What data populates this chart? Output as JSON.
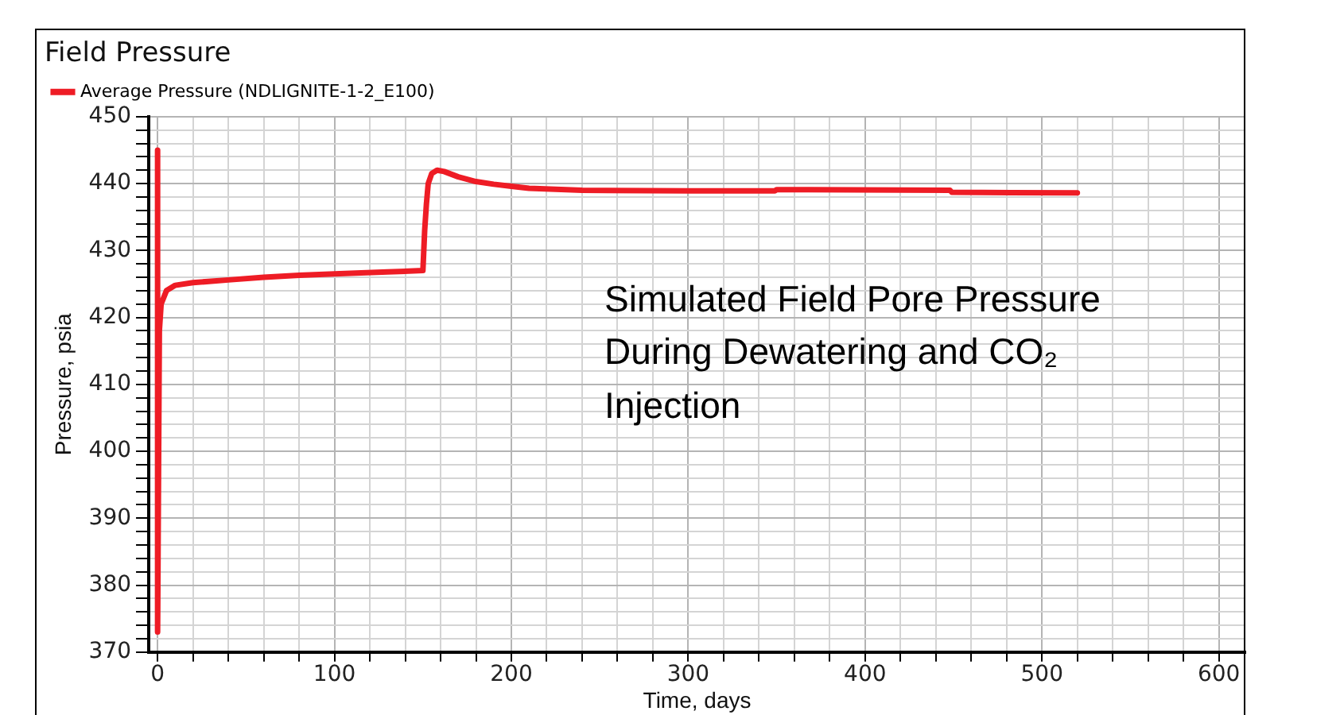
{
  "chart_data": {
    "type": "line",
    "title": "Field Pressure",
    "xlabel": "Time, days",
    "ylabel": "Pressure, psia",
    "x": [
      0,
      0,
      1,
      2,
      5,
      10,
      20,
      40,
      60,
      80,
      100,
      130,
      150,
      151,
      152,
      153,
      155,
      158,
      162,
      170,
      180,
      190,
      200,
      210,
      240,
      300,
      349,
      350,
      448,
      449,
      520
    ],
    "series": [
      {
        "name": "Average Pressure (NDLIGNITE-1-2_E100)",
        "color": "#ee1c25",
        "values": [
          445,
          373,
          418,
          422,
          424,
          424.8,
          425.2,
          425.6,
          426,
          426.3,
          426.5,
          426.8,
          427,
          433,
          437,
          440,
          441.5,
          442,
          441.8,
          441,
          440.3,
          439.9,
          439.6,
          439.3,
          439,
          438.9,
          438.9,
          439.1,
          439,
          438.7,
          438.6
        ]
      }
    ],
    "xlim": [
      -5,
      615
    ],
    "xticks": [
      0,
      {
        "value": 20,
        "label": null
      },
      {
        "value": 40,
        "label": null
      },
      {
        "value": 60,
        "label": null
      },
      {
        "value": 80,
        "label": null
      },
      100,
      {
        "value": 120,
        "label": null
      },
      {
        "value": 140,
        "label": null
      },
      {
        "value": 160,
        "label": null
      },
      {
        "value": 180,
        "label": null
      },
      200,
      {
        "value": 220,
        "label": null
      },
      {
        "value": 240,
        "label": null
      },
      {
        "value": 260,
        "label": null
      },
      {
        "value": 280,
        "label": null
      },
      300,
      {
        "value": 320,
        "label": null
      },
      {
        "value": 340,
        "label": null
      },
      {
        "value": 360,
        "label": null
      },
      {
        "value": 380,
        "label": null
      },
      400,
      {
        "value": 420,
        "label": null
      },
      {
        "value": 440,
        "label": null
      },
      {
        "value": 460,
        "label": null
      },
      {
        "value": 480,
        "label": null
      },
      500,
      {
        "value": 520,
        "label": null
      },
      {
        "value": 540,
        "label": null
      },
      {
        "value": 560,
        "label": null
      },
      {
        "value": 580,
        "label": null
      },
      600
    ],
    "ylim": [
      370,
      450
    ],
    "yticks": [
      370,
      {
        "value": 372,
        "label": null
      },
      {
        "value": 374,
        "label": null
      },
      {
        "value": 376,
        "label": null
      },
      {
        "value": 378,
        "label": null
      },
      380,
      {
        "value": 382,
        "label": null
      },
      {
        "value": 384,
        "label": null
      },
      {
        "value": 386,
        "label": null
      },
      {
        "value": 388,
        "label": null
      },
      390,
      {
        "value": 392,
        "label": null
      },
      {
        "value": 394,
        "label": null
      },
      {
        "value": 396,
        "label": null
      },
      {
        "value": 398,
        "label": null
      },
      400,
      {
        "value": 402,
        "label": null
      },
      {
        "value": 404,
        "label": null
      },
      {
        "value": 406,
        "label": null
      },
      {
        "value": 408,
        "label": null
      },
      410,
      {
        "value": 412,
        "label": null
      },
      {
        "value": 414,
        "label": null
      },
      {
        "value": 416,
        "label": null
      },
      {
        "value": 418,
        "label": null
      },
      420,
      {
        "value": 422,
        "label": null
      },
      {
        "value": 424,
        "label": null
      },
      {
        "value": 426,
        "label": null
      },
      {
        "value": 428,
        "label": null
      },
      430,
      {
        "value": 432,
        "label": null
      },
      {
        "value": 434,
        "label": null
      },
      {
        "value": 436,
        "label": null
      },
      {
        "value": 438,
        "label": null
      },
      440,
      {
        "value": 442,
        "label": null
      },
      {
        "value": 444,
        "label": null
      },
      {
        "value": 446,
        "label": null
      },
      {
        "value": 448,
        "label": null
      },
      450
    ],
    "grid": true,
    "legend": "top",
    "marker": "none",
    "line_style": "solid",
    "annotations": [
      "Simulated Field Pore Pressure During Dewatering and CO₂ Injection"
    ]
  }
}
